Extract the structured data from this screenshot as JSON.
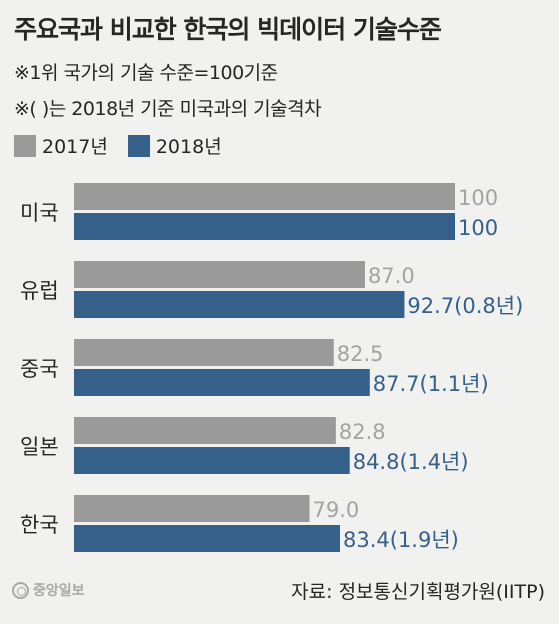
{
  "title": "주요국과 비교한 한국의 빅데이터 기술수준",
  "notes": [
    "※1위 국가의 기술 수준=100기준",
    "※( )는 2018년 기준 미국과의 기술격차"
  ],
  "colors": {
    "series_2017": "#9a9a9a",
    "series_2018": "#35608a",
    "label_2017": "#a3a3a3",
    "label_2018": "#35608a"
  },
  "chart_data": {
    "type": "bar",
    "orientation": "horizontal",
    "categories": [
      "미국",
      "유럽",
      "중국",
      "일본",
      "한국"
    ],
    "series": [
      {
        "name": "2017년",
        "values": [
          100,
          87.0,
          82.5,
          82.8,
          79.0
        ],
        "labels": [
          "100",
          "87.0",
          "82.5",
          "82.8",
          "79.0"
        ]
      },
      {
        "name": "2018년",
        "values": [
          100,
          92.7,
          87.7,
          84.8,
          83.4
        ],
        "labels": [
          "100",
          "92.7(0.8년)",
          "87.7(1.1년)",
          "84.8(1.4년)",
          "83.4(1.9년)"
        ]
      }
    ],
    "xlim": [
      45,
      100
    ],
    "grid": false,
    "legend": "top-left"
  },
  "footer": {
    "source": "자료: 정보통신기획평가원(IITP)",
    "logo_text": "중앙일보"
  }
}
